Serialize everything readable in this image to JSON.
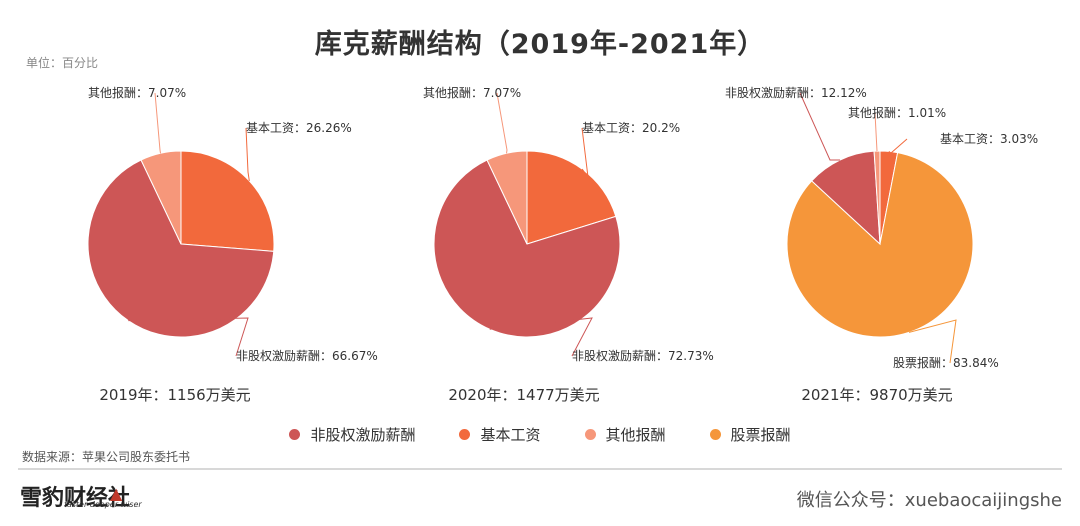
{
  "title": "库克薪酬结构（2019年-2021年）",
  "unit_label": "单位：百分比",
  "source": "数据来源：苹果公司股东委托书",
  "brand": {
    "name": "雪豹财经社",
    "tagline": "faster deeper wiser"
  },
  "wechat": "微信公众号：xuebaocaijingshe",
  "colors": {
    "非股权激励薪酬": "#cd5656",
    "基本工资": "#f2693c",
    "其他报酬": "#f6977a",
    "股票报酬": "#f5963a"
  },
  "legend": [
    "非股权激励薪酬",
    "基本工资",
    "其他报酬",
    "股票报酬"
  ],
  "chart_data": [
    {
      "type": "pie",
      "caption": "2019年：1156万美元",
      "slices": [
        {
          "name": "基本工资",
          "value": 26.26,
          "label": "基本工资：26.26%"
        },
        {
          "name": "非股权激励薪酬",
          "value": 66.67,
          "label": "非股权激励薪酬：66.67%"
        },
        {
          "name": "其他报酬",
          "value": 7.07,
          "label": "其他报酬：7.07%"
        }
      ]
    },
    {
      "type": "pie",
      "caption": "2020年：1477万美元",
      "slices": [
        {
          "name": "基本工资",
          "value": 20.2,
          "label": "基本工资：20.2%"
        },
        {
          "name": "非股权激励薪酬",
          "value": 72.73,
          "label": "非股权激励薪酬：72.73%"
        },
        {
          "name": "其他报酬",
          "value": 7.07,
          "label": "其他报酬：7.07%"
        }
      ]
    },
    {
      "type": "pie",
      "caption": "2021年：9870万美元",
      "slices": [
        {
          "name": "基本工资",
          "value": 3.03,
          "label": "基本工资：3.03%"
        },
        {
          "name": "股票报酬",
          "value": 83.84,
          "label": "股票报酬：83.84%"
        },
        {
          "name": "非股权激励薪酬",
          "value": 12.12,
          "label": "非股权激励薪酬：12.12%"
        },
        {
          "name": "其他报酬",
          "value": 1.01,
          "label": "其他报酬：1.01%"
        }
      ]
    }
  ]
}
